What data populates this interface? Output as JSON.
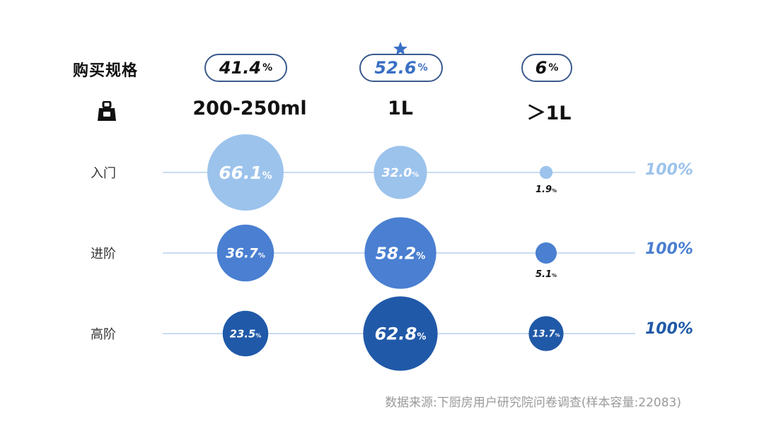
{
  "title": "购买规格",
  "weight_icon": "weight-icon",
  "star_icon": "star-icon",
  "overall": [
    {
      "value": "41.4",
      "unit": "%"
    },
    {
      "value": "52.6",
      "unit": "%"
    },
    {
      "value": "6",
      "unit": "%"
    }
  ],
  "chart_data": {
    "type": "scatter",
    "categories": [
      "200-250ml",
      "1L",
      "＞1L"
    ],
    "series": [
      {
        "name": "入门",
        "values": [
          66.1,
          32.0,
          1.9
        ],
        "total": "100%",
        "color": "#9cc3ec"
      },
      {
        "name": "进阶",
        "values": [
          36.7,
          58.2,
          5.1
        ],
        "total": "100%",
        "color": "#4a7fd1"
      },
      {
        "name": "高阶",
        "values": [
          23.5,
          62.8,
          13.7
        ],
        "total": "100%",
        "color": "#2059a8"
      }
    ],
    "value_unit": "%"
  },
  "source": "数据来源:下厨房用户研究院问卷调查(样本容量:22083)"
}
